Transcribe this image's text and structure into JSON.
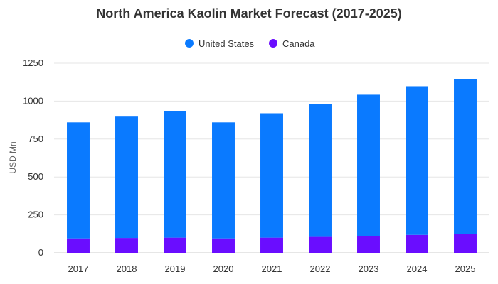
{
  "chart_data": {
    "type": "bar",
    "stacked": true,
    "title": "North America Kaolin Market Forecast (2017-2025)",
    "ylabel": "USD Mn",
    "xlabel": "",
    "categories": [
      "2017",
      "2018",
      "2019",
      "2020",
      "2021",
      "2022",
      "2023",
      "2024",
      "2025"
    ],
    "series": [
      {
        "name": "Canada",
        "color": "#6a0dff",
        "values": [
          95,
          98,
          100,
          95,
          100,
          105,
          112,
          118,
          122
        ]
      },
      {
        "name": "United States",
        "color": "#0a7aff",
        "values": [
          765,
          800,
          835,
          765,
          820,
          875,
          930,
          980,
          1025
        ]
      }
    ],
    "legend": {
      "position": "top-center",
      "items": [
        {
          "name": "United States",
          "color": "#0a7aff"
        },
        {
          "name": "Canada",
          "color": "#6a0dff"
        }
      ]
    },
    "ylim": [
      0,
      1250
    ],
    "yticks": [
      0,
      250,
      500,
      750,
      1000,
      1250
    ],
    "grid": true
  }
}
